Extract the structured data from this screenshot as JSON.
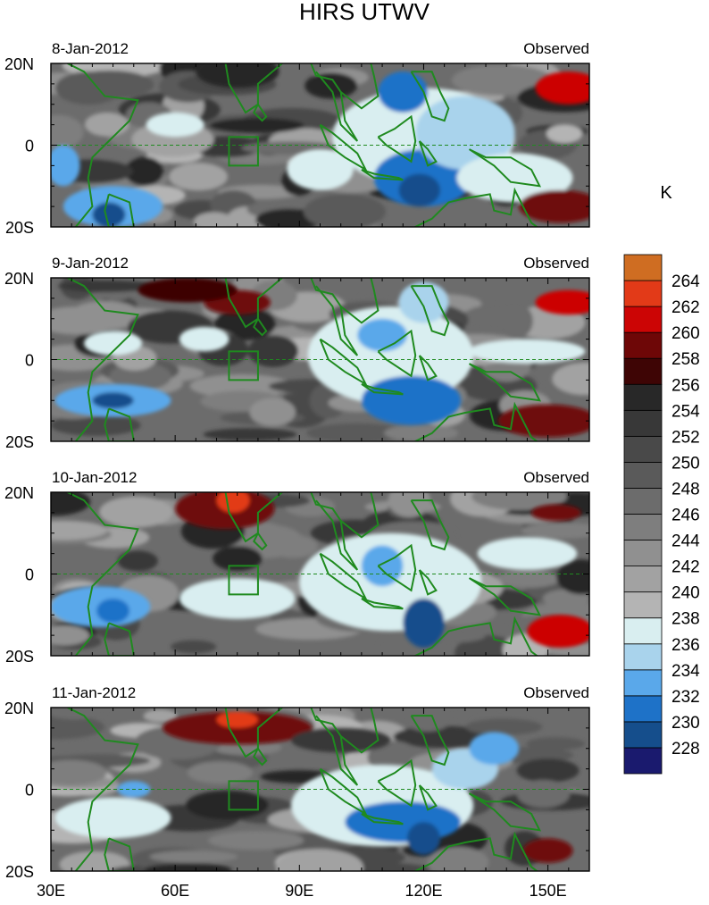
{
  "chart_data": {
    "type": "heatmap",
    "title": "HIRS UTWV",
    "colorbar": {
      "unit": "K",
      "levels": [
        228,
        230,
        232,
        234,
        236,
        238,
        240,
        242,
        244,
        246,
        248,
        250,
        252,
        254,
        256,
        258,
        260,
        262,
        264
      ],
      "colors": [
        "#1a1a6e",
        "#154e8c",
        "#1e72c8",
        "#5aa8ea",
        "#a9d3ec",
        "#d9eef0",
        "#b4b4b4",
        "#a2a2a2",
        "#909090",
        "#7e7e7e",
        "#6c6c6c",
        "#5a5a5a",
        "#494949",
        "#383838",
        "#282828",
        "#3e0505",
        "#6e0707",
        "#cc0505",
        "#e23a18",
        "#cf6d22"
      ]
    },
    "xaxis": {
      "ticks": [
        "30E",
        "60E",
        "90E",
        "120E",
        "150E"
      ],
      "values": [
        30,
        60,
        90,
        120,
        150
      ],
      "range": [
        30,
        160
      ]
    },
    "yaxis": {
      "ticks": [
        "20N",
        "0",
        "20S"
      ],
      "values": [
        20,
        0,
        -20
      ],
      "range": [
        -20,
        20
      ]
    },
    "box": {
      "lon": [
        73,
        80
      ],
      "lat": [
        -5,
        2
      ]
    },
    "panels": [
      {
        "date": "8-Jan-2012",
        "label": "Observed",
        "features": [
          {
            "lon": 120,
            "lat": 2,
            "rx": 22,
            "ry": 12,
            "value": 236
          },
          {
            "lon": 120,
            "lat": -8,
            "rx": 12,
            "ry": 7,
            "value": 231
          },
          {
            "lon": 119,
            "lat": -11,
            "rx": 5,
            "ry": 4,
            "value": 229
          },
          {
            "lon": 115,
            "lat": 13,
            "rx": 6,
            "ry": 5,
            "value": 231
          },
          {
            "lon": 130,
            "lat": 3,
            "rx": 12,
            "ry": 9,
            "value": 234
          },
          {
            "lon": 45,
            "lat": -15,
            "rx": 12,
            "ry": 5,
            "value": 232
          },
          {
            "lon": 44,
            "lat": -17,
            "rx": 4,
            "ry": 3,
            "value": 228
          },
          {
            "lon": 33,
            "lat": -5,
            "rx": 4,
            "ry": 5,
            "value": 232
          },
          {
            "lon": 60,
            "lat": 5,
            "rx": 7,
            "ry": 3,
            "value": 237
          },
          {
            "lon": 95,
            "lat": -6,
            "rx": 8,
            "ry": 5,
            "value": 237
          },
          {
            "lon": 142,
            "lat": -8,
            "rx": 14,
            "ry": 6,
            "value": 237
          },
          {
            "lon": 155,
            "lat": 14,
            "rx": 8,
            "ry": 4,
            "value": 261
          },
          {
            "lon": 153,
            "lat": -15,
            "rx": 10,
            "ry": 4,
            "value": 258
          },
          {
            "lon": 75,
            "lat": 18,
            "rx": 10,
            "ry": 4,
            "value": 254
          }
        ]
      },
      {
        "date": "9-Jan-2012",
        "label": "Observed",
        "features": [
          {
            "lon": 112,
            "lat": 1,
            "rx": 20,
            "ry": 12,
            "value": 236
          },
          {
            "lon": 117,
            "lat": -10,
            "rx": 12,
            "ry": 6,
            "value": 231
          },
          {
            "lon": 110,
            "lat": 6,
            "rx": 6,
            "ry": 4,
            "value": 232
          },
          {
            "lon": 120,
            "lat": 14,
            "rx": 6,
            "ry": 5,
            "value": 235
          },
          {
            "lon": 45,
            "lat": -10,
            "rx": 14,
            "ry": 4,
            "value": 232
          },
          {
            "lon": 45,
            "lat": -10,
            "rx": 5,
            "ry": 2,
            "value": 229
          },
          {
            "lon": 45,
            "lat": 4,
            "rx": 7,
            "ry": 3,
            "value": 237
          },
          {
            "lon": 67,
            "lat": 5,
            "rx": 6,
            "ry": 3,
            "value": 237
          },
          {
            "lon": 145,
            "lat": 2,
            "rx": 14,
            "ry": 3,
            "value": 237
          },
          {
            "lon": 155,
            "lat": 14,
            "rx": 8,
            "ry": 3,
            "value": 261
          },
          {
            "lon": 150,
            "lat": -15,
            "rx": 12,
            "ry": 4,
            "value": 259
          },
          {
            "lon": 75,
            "lat": 14,
            "rx": 8,
            "ry": 3,
            "value": 259
          },
          {
            "lon": 63,
            "lat": 17,
            "rx": 12,
            "ry": 3,
            "value": 256
          }
        ]
      },
      {
        "date": "10-Jan-2012",
        "label": "Observed",
        "features": [
          {
            "lon": 112,
            "lat": -2,
            "rx": 22,
            "ry": 12,
            "value": 236
          },
          {
            "lon": 120,
            "lat": -12,
            "rx": 5,
            "ry": 6,
            "value": 229
          },
          {
            "lon": 110,
            "lat": 2,
            "rx": 5,
            "ry": 5,
            "value": 233
          },
          {
            "lon": 42,
            "lat": -8,
            "rx": 12,
            "ry": 5,
            "value": 232
          },
          {
            "lon": 45,
            "lat": -9,
            "rx": 4,
            "ry": 3,
            "value": 230
          },
          {
            "lon": 75,
            "lat": -6,
            "rx": 14,
            "ry": 5,
            "value": 237
          },
          {
            "lon": 145,
            "lat": 5,
            "rx": 12,
            "ry": 4,
            "value": 236
          },
          {
            "lon": 72,
            "lat": 16,
            "rx": 12,
            "ry": 5,
            "value": 259
          },
          {
            "lon": 74,
            "lat": 18,
            "rx": 4,
            "ry": 3,
            "value": 262
          },
          {
            "lon": 153,
            "lat": -14,
            "rx": 8,
            "ry": 4,
            "value": 260
          },
          {
            "lon": 152,
            "lat": 15,
            "rx": 6,
            "ry": 2,
            "value": 258
          }
        ]
      },
      {
        "date": "11-Jan-2012",
        "label": "Observed",
        "features": [
          {
            "lon": 110,
            "lat": -4,
            "rx": 22,
            "ry": 10,
            "value": 236
          },
          {
            "lon": 115,
            "lat": -8,
            "rx": 14,
            "ry": 5,
            "value": 231
          },
          {
            "lon": 120,
            "lat": -12,
            "rx": 4,
            "ry": 4,
            "value": 228
          },
          {
            "lon": 130,
            "lat": 5,
            "rx": 8,
            "ry": 5,
            "value": 234
          },
          {
            "lon": 137,
            "lat": 10,
            "rx": 6,
            "ry": 4,
            "value": 233
          },
          {
            "lon": 50,
            "lat": 0,
            "rx": 4,
            "ry": 2,
            "value": 232
          },
          {
            "lon": 45,
            "lat": -7,
            "rx": 14,
            "ry": 5,
            "value": 237
          },
          {
            "lon": 75,
            "lat": 15,
            "rx": 18,
            "ry": 4,
            "value": 258
          },
          {
            "lon": 75,
            "lat": 17,
            "rx": 5,
            "ry": 2,
            "value": 262
          },
          {
            "lon": 150,
            "lat": -15,
            "rx": 6,
            "ry": 3,
            "value": 259
          },
          {
            "lon": 100,
            "lat": 12,
            "rx": 12,
            "ry": 3,
            "value": 252
          }
        ]
      }
    ]
  }
}
